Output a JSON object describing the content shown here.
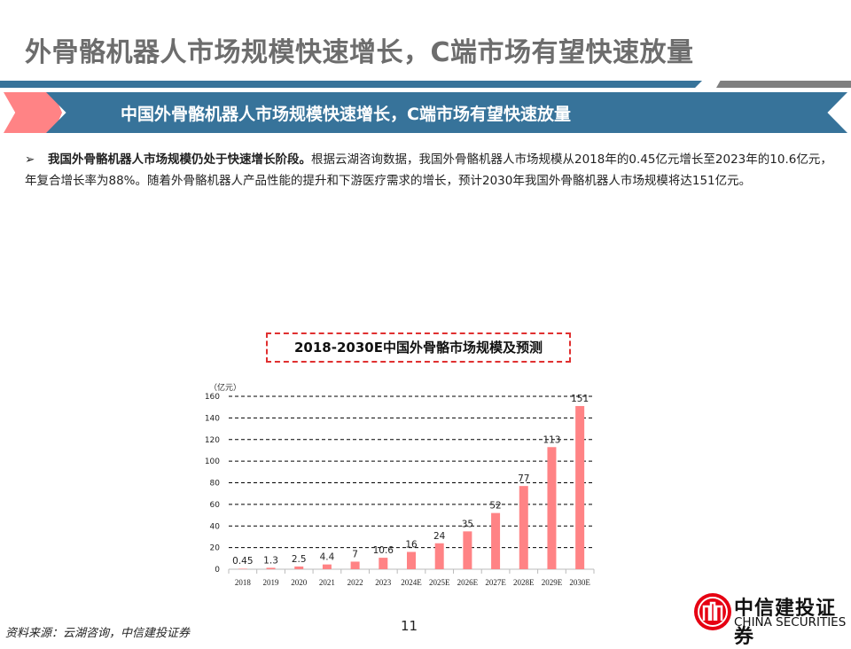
{
  "header": {
    "title": "外骨骼机器人市场规模快速增长，C端市场有望快速放量"
  },
  "banner": {
    "text": "中国外骨骼机器人市场规模快速增长，C端市场有望快速放量"
  },
  "body": {
    "bullet_icon": "arrow-bullet-icon",
    "bold": "我国外骨骼机器人市场规模仍处于快速增长阶段。",
    "text": "根据云湖咨询数据，我国外骨骼机器人市场规模从2018年的0.45亿元增长至2023年的10.6亿元，年复合增长率为88%。随着外骨骼机器人产品性能的提升和下游医疗需求的增长，预计2030年我国外骨骼机器人市场规模将达151亿元。"
  },
  "chart_data": {
    "type": "bar",
    "title": "2018-2030E中国外骨骼市场规模及预测",
    "unit_label": "（亿元）",
    "categories": [
      "2018",
      "2019",
      "2020",
      "2021",
      "2022",
      "2023",
      "2024E",
      "2025E",
      "2026E",
      "2027E",
      "2028E",
      "2029E",
      "2030E"
    ],
    "values": [
      0.45,
      1.3,
      2.5,
      4.4,
      7,
      10.6,
      16,
      24,
      35,
      52,
      77,
      113,
      151
    ],
    "data_labels": [
      "0.45",
      "1.3",
      "2.5",
      "4.4",
      "7",
      "10.6",
      "16",
      "24",
      "35",
      "52",
      "77",
      "113",
      "151"
    ],
    "ylim": [
      0,
      160
    ],
    "yticks": [
      0,
      20,
      40,
      60,
      80,
      100,
      120,
      140,
      160
    ],
    "grid": "dashed horizontal",
    "bar_color": "#ff8385"
  },
  "footer": {
    "source": "资料来源：云湖咨询，中信建投证券",
    "page": "11",
    "logo_cn": "中信建投证券",
    "logo_en": "CHINA SECURITIES",
    "logo_color": "#e60012"
  }
}
